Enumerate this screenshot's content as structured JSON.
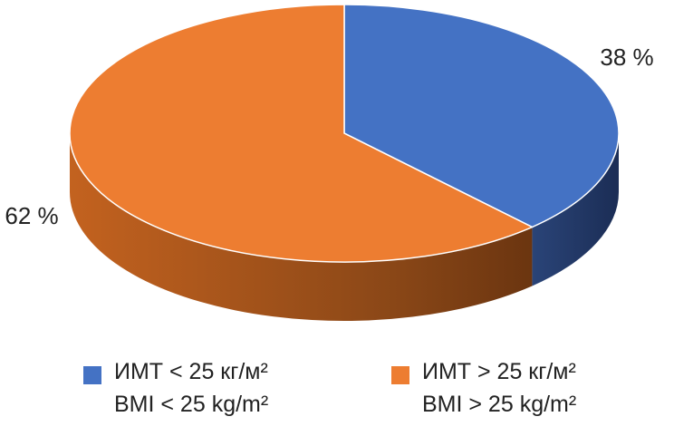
{
  "chart_data": {
    "type": "pie3d",
    "categories": [
      "ИМТ < 25 кг/м²\nBMI < 25 kg/m²",
      "ИМТ > 25 кг/м²\nBMI > 25 kg/m²"
    ],
    "values": [
      38,
      62
    ],
    "value_labels": [
      "38 %",
      "62 %"
    ],
    "colors": [
      "#4472c4",
      "#ed7d31"
    ]
  }
}
